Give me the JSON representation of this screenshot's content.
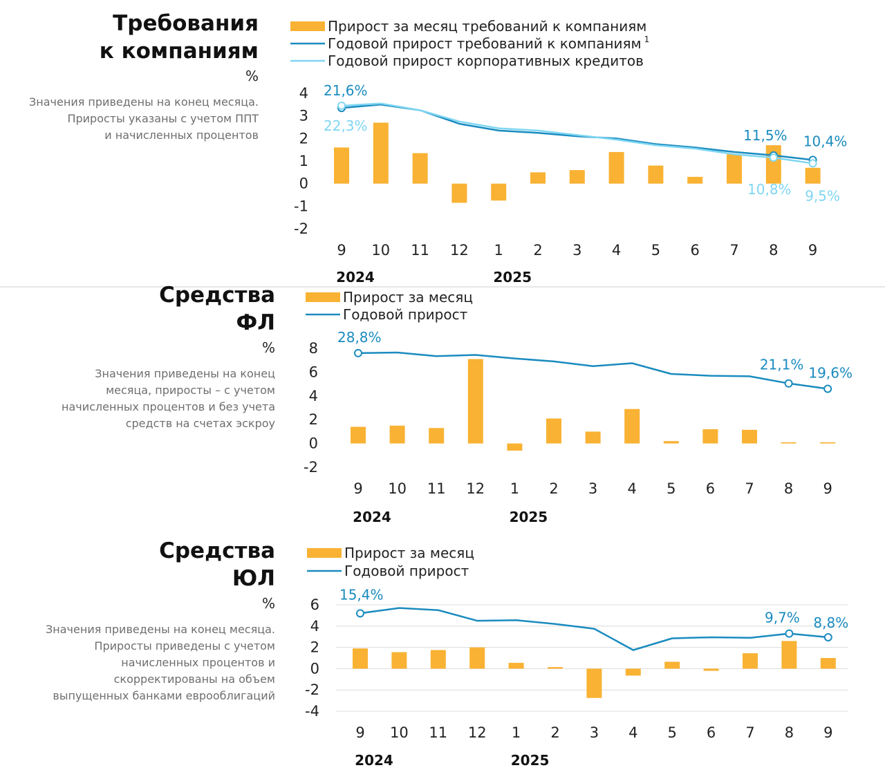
{
  "chart_data": [
    {
      "type": "bar",
      "title_lines": [
        "Требования",
        "к компаниям"
      ],
      "unit": "%",
      "note_lines": [
        "Значения приведены на конец месяца.",
        "Приросты указаны с учетом ППТ",
        "и начисленных процентов"
      ],
      "categories": [
        "9",
        "10",
        "11",
        "12",
        "1",
        "2",
        "3",
        "4",
        "5",
        "6",
        "7",
        "8",
        "9"
      ],
      "years": [
        {
          "label": "2024",
          "at": 0
        },
        {
          "label": "2025",
          "at": 4
        }
      ],
      "ylim": [
        -2,
        4
      ],
      "yticks": [
        4,
        3,
        2,
        1,
        0,
        -1,
        -2
      ],
      "grid": false,
      "legend_placement": "top",
      "series": [
        {
          "name": "Прирост за месяц требований к компаниям",
          "kind": "bar",
          "color": "#F9B233",
          "values": [
            1.6,
            2.7,
            1.35,
            -0.85,
            -0.75,
            0.5,
            0.6,
            1.4,
            0.8,
            0.3,
            1.3,
            1.7,
            0.7
          ]
        },
        {
          "name": "Годовой прирост требований к компаниям",
          "superscript": "1",
          "kind": "line",
          "color": "#1A8BBF",
          "values": [
            3.35,
            3.5,
            3.25,
            2.65,
            2.35,
            2.25,
            2.1,
            2.0,
            1.75,
            1.6,
            1.4,
            1.25,
            1.05
          ],
          "labels": [
            {
              "at": 0,
              "text": "21,6%"
            },
            {
              "at": 11,
              "text": "11,5%"
            },
            {
              "at": 12,
              "text": "10,4%"
            }
          ]
        },
        {
          "name": "Годовой прирост корпоративных кредитов",
          "kind": "line",
          "color": "#7FD6F2",
          "values": [
            3.45,
            3.55,
            3.25,
            2.75,
            2.45,
            2.35,
            2.15,
            1.95,
            1.7,
            1.55,
            1.3,
            1.15,
            0.9
          ],
          "labels": [
            {
              "at": 0,
              "text": "22,3%"
            },
            {
              "at": 11,
              "text": "10,8%"
            },
            {
              "at": 12,
              "text": "9,5%"
            }
          ]
        }
      ]
    },
    {
      "type": "bar",
      "title_lines": [
        "Средства",
        "ФЛ"
      ],
      "unit": "%",
      "note_lines": [
        "Значения приведены на конец",
        "месяца, приросты – с учетом",
        "начисленных процентов и без учета",
        "средств на счетах эскроу"
      ],
      "categories": [
        "9",
        "10",
        "11",
        "12",
        "1",
        "2",
        "3",
        "4",
        "5",
        "6",
        "7",
        "8",
        "9"
      ],
      "years": [
        {
          "label": "2024",
          "at": 0
        },
        {
          "label": "2025",
          "at": 4
        }
      ],
      "ylim": [
        -2,
        8
      ],
      "yticks": [
        8,
        6,
        4,
        2,
        0,
        -2
      ],
      "grid": false,
      "legend_placement": "top",
      "series": [
        {
          "name": "Прирост за месяц",
          "kind": "bar",
          "color": "#F9B233",
          "values": [
            1.4,
            1.5,
            1.3,
            7.1,
            -0.6,
            2.1,
            1.0,
            2.9,
            0.2,
            1.2,
            1.15,
            0.1,
            0.1
          ]
        },
        {
          "name": "Годовой прирост",
          "kind": "line",
          "color": "#1A8BBF",
          "values": [
            7.6,
            7.65,
            7.35,
            7.45,
            7.15,
            6.9,
            6.5,
            6.75,
            5.85,
            5.7,
            5.65,
            5.05,
            4.6
          ],
          "labels": [
            {
              "at": 0,
              "text": "28,8%"
            },
            {
              "at": 11,
              "text": "21,1%"
            },
            {
              "at": 12,
              "text": "19,6%"
            }
          ]
        }
      ]
    },
    {
      "type": "bar",
      "title_lines": [
        "Средства",
        "ЮЛ"
      ],
      "unit": "%",
      "note_lines": [
        "Значения приведены на конец месяца.",
        "Приросты приведены с учетом",
        "начисленных процентов и",
        "скорректированы на объем",
        "выпущенных банками еврооблигаций"
      ],
      "categories": [
        "9",
        "10",
        "11",
        "12",
        "1",
        "2",
        "3",
        "4",
        "5",
        "6",
        "7",
        "8",
        "9"
      ],
      "years": [
        {
          "label": "2024",
          "at": 0
        },
        {
          "label": "2025",
          "at": 4
        }
      ],
      "ylim": [
        -4,
        6
      ],
      "yticks": [
        6,
        4,
        2,
        0,
        -2,
        -4
      ],
      "grid": true,
      "legend_placement": "top",
      "series": [
        {
          "name": "Прирост за месяц",
          "kind": "bar",
          "color": "#F9B233",
          "values": [
            1.9,
            1.55,
            1.75,
            2.0,
            0.55,
            0.15,
            -2.75,
            -0.65,
            0.65,
            -0.2,
            1.45,
            2.6,
            1.0
          ]
        },
        {
          "name": "Годовой прирост",
          "kind": "line",
          "color": "#1A8BBF",
          "values": [
            5.2,
            5.7,
            5.5,
            4.5,
            4.55,
            4.2,
            3.75,
            1.75,
            2.85,
            2.95,
            2.9,
            3.3,
            2.95
          ],
          "labels": [
            {
              "at": 0,
              "text": "15,4%"
            },
            {
              "at": 11,
              "text": "9,7%"
            },
            {
              "at": 12,
              "text": "8,8%"
            }
          ]
        }
      ]
    }
  ]
}
